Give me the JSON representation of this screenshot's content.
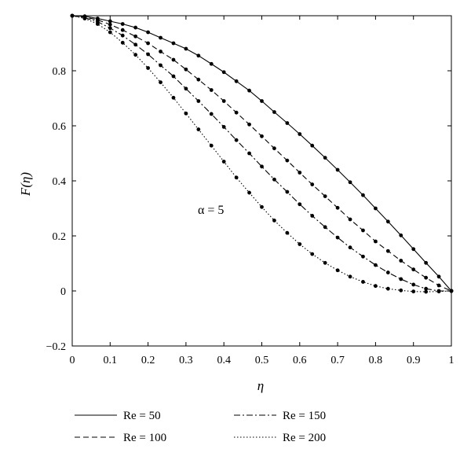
{
  "chart_data": {
    "type": "line",
    "xlabel": "η",
    "ylabel": "F(η)",
    "xlim": [
      0,
      1
    ],
    "ylim": [
      -0.2,
      1.0
    ],
    "x_ticks": [
      "0",
      "0.1",
      "0.2",
      "0.3",
      "0.4",
      "0.5",
      "0.6",
      "0.7",
      "0.8",
      "0.9",
      "1"
    ],
    "y_ticks": [
      "−0.2",
      "0",
      "0.2",
      "0.4",
      "0.6",
      "0.8"
    ],
    "annotation": "α = 5",
    "grid": false,
    "legend_position": "bottom",
    "series": [
      {
        "name": "Re = 50",
        "dash": "solid",
        "x": [
          0,
          0.033,
          0.067,
          0.1,
          0.133,
          0.167,
          0.2,
          0.233,
          0.267,
          0.3,
          0.333,
          0.367,
          0.4,
          0.433,
          0.467,
          0.5,
          0.533,
          0.567,
          0.6,
          0.633,
          0.667,
          0.7,
          0.733,
          0.767,
          0.8,
          0.833,
          0.867,
          0.9,
          0.933,
          0.967,
          1.0
        ],
        "y": [
          1.0,
          0.998,
          0.99,
          0.98,
          0.97,
          0.957,
          0.94,
          0.92,
          0.9,
          0.88,
          0.855,
          0.825,
          0.795,
          0.762,
          0.728,
          0.69,
          0.65,
          0.61,
          0.57,
          0.528,
          0.484,
          0.44,
          0.395,
          0.348,
          0.3,
          0.252,
          0.202,
          0.152,
          0.102,
          0.052,
          0.0
        ]
      },
      {
        "name": "Re = 100",
        "dash": "dashed",
        "x": [
          0,
          0.033,
          0.067,
          0.1,
          0.133,
          0.167,
          0.2,
          0.233,
          0.267,
          0.3,
          0.333,
          0.367,
          0.4,
          0.433,
          0.467,
          0.5,
          0.533,
          0.567,
          0.6,
          0.633,
          0.667,
          0.7,
          0.733,
          0.767,
          0.8,
          0.833,
          0.867,
          0.9,
          0.933,
          0.967,
          1.0
        ],
        "y": [
          1.0,
          0.995,
          0.985,
          0.968,
          0.948,
          0.925,
          0.9,
          0.87,
          0.84,
          0.805,
          0.768,
          0.73,
          0.69,
          0.648,
          0.605,
          0.562,
          0.518,
          0.474,
          0.43,
          0.387,
          0.344,
          0.302,
          0.26,
          0.22,
          0.18,
          0.145,
          0.11,
          0.078,
          0.048,
          0.02,
          0.0
        ]
      },
      {
        "name": "Re = 150",
        "dash": "dashdot",
        "x": [
          0,
          0.033,
          0.067,
          0.1,
          0.133,
          0.167,
          0.2,
          0.233,
          0.267,
          0.3,
          0.333,
          0.367,
          0.4,
          0.433,
          0.467,
          0.5,
          0.533,
          0.567,
          0.6,
          0.633,
          0.667,
          0.7,
          0.733,
          0.767,
          0.8,
          0.833,
          0.867,
          0.9,
          0.933,
          0.967,
          1.0
        ],
        "y": [
          1.0,
          0.993,
          0.978,
          0.955,
          0.928,
          0.895,
          0.86,
          0.82,
          0.78,
          0.735,
          0.69,
          0.643,
          0.596,
          0.548,
          0.5,
          0.452,
          0.405,
          0.36,
          0.315,
          0.273,
          0.232,
          0.194,
          0.158,
          0.125,
          0.094,
          0.067,
          0.043,
          0.023,
          0.008,
          0.0,
          0.0
        ]
      },
      {
        "name": "Re = 200",
        "dash": "dotted",
        "x": [
          0,
          0.033,
          0.067,
          0.1,
          0.133,
          0.167,
          0.2,
          0.233,
          0.267,
          0.3,
          0.333,
          0.367,
          0.4,
          0.433,
          0.467,
          0.5,
          0.533,
          0.567,
          0.6,
          0.633,
          0.667,
          0.7,
          0.733,
          0.767,
          0.8,
          0.833,
          0.867,
          0.9,
          0.933,
          0.967,
          1.0
        ],
        "y": [
          1.0,
          0.99,
          0.97,
          0.94,
          0.902,
          0.858,
          0.81,
          0.758,
          0.702,
          0.645,
          0.587,
          0.528,
          0.47,
          0.412,
          0.357,
          0.305,
          0.256,
          0.211,
          0.17,
          0.134,
          0.102,
          0.075,
          0.052,
          0.033,
          0.018,
          0.008,
          0.002,
          -0.002,
          -0.003,
          -0.002,
          0.0
        ]
      }
    ]
  }
}
